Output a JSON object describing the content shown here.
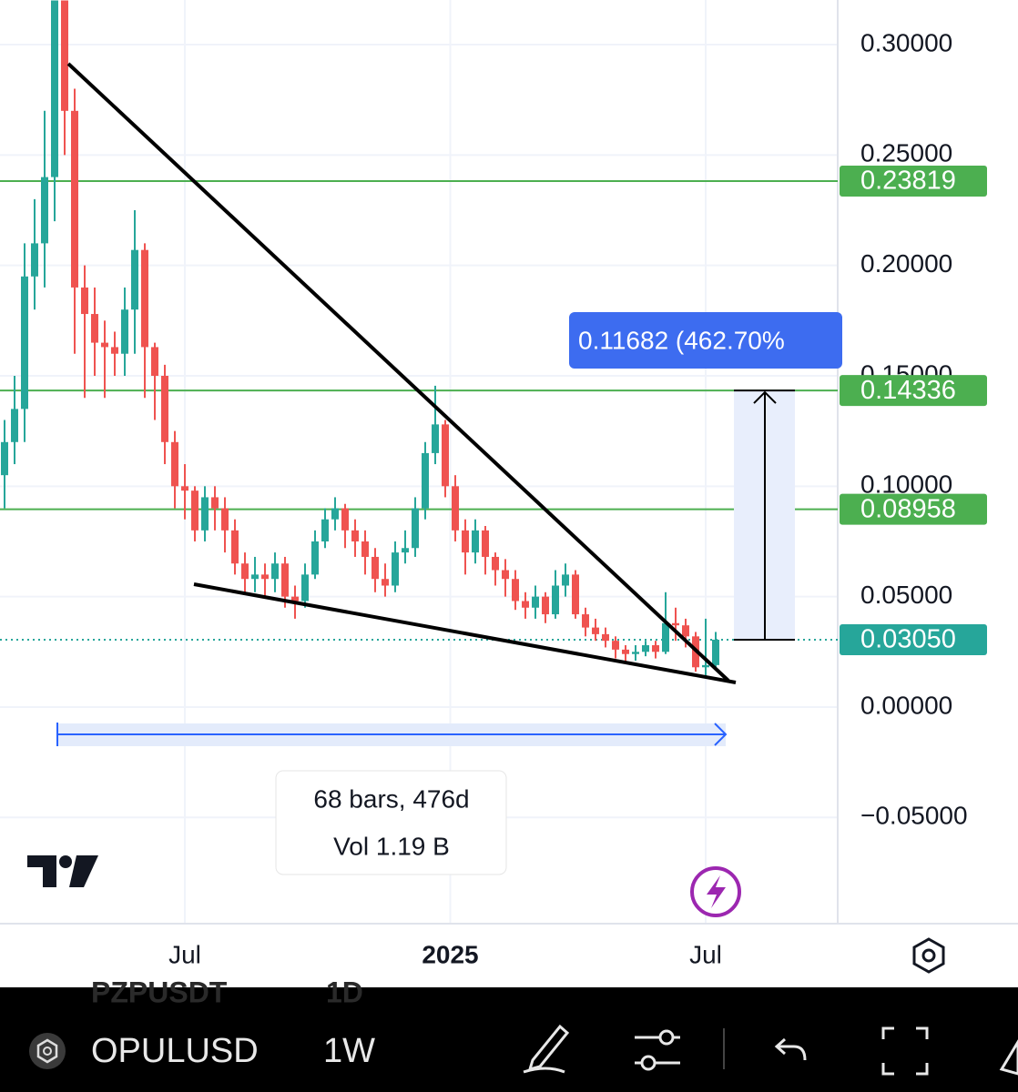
{
  "chart_data": {
    "type": "candlestick",
    "up_color": "#26a69a",
    "down_color": "#ef5350",
    "open": [
      0.105,
      0.12,
      0.135,
      0.195,
      0.21,
      0.24,
      0.32,
      0.27,
      0.19,
      0.178,
      0.165,
      0.163,
      0.16,
      0.18,
      0.207,
      0.163,
      0.15,
      0.12,
      0.1,
      0.098,
      0.08,
      0.095,
      0.09,
      0.08,
      0.065,
      0.058,
      0.06,
      0.058,
      0.065,
      0.05,
      0.048,
      0.06,
      0.075,
      0.085,
      0.09,
      0.08,
      0.075,
      0.068,
      0.058,
      0.055,
      0.07,
      0.072,
      0.09,
      0.115,
      0.128,
      0.1,
      0.08,
      0.07,
      0.08,
      0.068,
      0.062,
      0.058,
      0.048,
      0.045,
      0.05,
      0.042,
      0.055,
      0.06,
      0.042,
      0.036,
      0.033,
      0.03,
      0.026,
      0.024,
      0.025,
      0.028,
      0.025,
      0.038,
      0.037,
      0.032,
      0.018,
      0.019
    ],
    "high": [
      0.13,
      0.15,
      0.21,
      0.23,
      0.27,
      0.32,
      0.32,
      0.28,
      0.2,
      0.19,
      0.175,
      0.17,
      0.19,
      0.225,
      0.21,
      0.165,
      0.155,
      0.125,
      0.11,
      0.1,
      0.1,
      0.1,
      0.095,
      0.085,
      0.07,
      0.068,
      0.065,
      0.07,
      0.068,
      0.055,
      0.065,
      0.08,
      0.09,
      0.095,
      0.092,
      0.085,
      0.08,
      0.072,
      0.065,
      0.075,
      0.08,
      0.095,
      0.12,
      0.1455,
      0.13,
      0.105,
      0.085,
      0.085,
      0.082,
      0.07,
      0.067,
      0.062,
      0.052,
      0.055,
      0.052,
      0.062,
      0.065,
      0.062,
      0.045,
      0.04,
      0.036,
      0.032,
      0.028,
      0.028,
      0.03,
      0.03,
      0.052,
      0.045,
      0.04,
      0.034,
      0.04,
      0.034
    ],
    "low": [
      0.09,
      0.11,
      0.12,
      0.18,
      0.19,
      0.22,
      0.25,
      0.16,
      0.14,
      0.15,
      0.14,
      0.15,
      0.15,
      0.16,
      0.14,
      0.13,
      0.11,
      0.09,
      0.085,
      0.075,
      0.075,
      0.08,
      0.07,
      0.06,
      0.052,
      0.052,
      0.05,
      0.052,
      0.045,
      0.04,
      0.045,
      0.058,
      0.072,
      0.08,
      0.072,
      0.068,
      0.06,
      0.052,
      0.05,
      0.052,
      0.065,
      0.068,
      0.085,
      0.11,
      0.095,
      0.075,
      0.06,
      0.065,
      0.06,
      0.055,
      0.05,
      0.044,
      0.04,
      0.04,
      0.038,
      0.04,
      0.05,
      0.04,
      0.032,
      0.03,
      0.027,
      0.022,
      0.02,
      0.021,
      0.023,
      0.022,
      0.024,
      0.03,
      0.027,
      0.016,
      0.014,
      0.018
    ],
    "close": [
      0.12,
      0.135,
      0.195,
      0.21,
      0.24,
      0.32,
      0.27,
      0.19,
      0.178,
      0.165,
      0.163,
      0.16,
      0.18,
      0.207,
      0.163,
      0.15,
      0.12,
      0.1,
      0.098,
      0.08,
      0.095,
      0.09,
      0.08,
      0.065,
      0.058,
      0.06,
      0.058,
      0.065,
      0.05,
      0.048,
      0.06,
      0.075,
      0.085,
      0.09,
      0.08,
      0.075,
      0.068,
      0.058,
      0.055,
      0.07,
      0.072,
      0.09,
      0.115,
      0.128,
      0.1,
      0.08,
      0.07,
      0.08,
      0.068,
      0.062,
      0.058,
      0.048,
      0.045,
      0.05,
      0.042,
      0.055,
      0.06,
      0.042,
      0.036,
      0.033,
      0.03,
      0.026,
      0.024,
      0.025,
      0.028,
      0.025,
      0.038,
      0.037,
      0.032,
      0.018,
      0.019,
      0.0305
    ],
    "ylim": [
      -0.0981,
      0.3202
    ],
    "yticks": [
      {
        "value": -0.05,
        "label": "−0.05000"
      },
      {
        "value": 0,
        "label": "0.00000"
      },
      {
        "value": 0.05,
        "label": "0.05000"
      },
      {
        "value": 0.1,
        "label": "0.10000"
      },
      {
        "value": 0.15,
        "label": "0.15000"
      },
      {
        "value": 0.2,
        "label": "0.20000"
      },
      {
        "value": 0.25,
        "label": "0.25000"
      },
      {
        "value": 0.3,
        "label": "0.30000"
      }
    ],
    "xticks": [
      {
        "value": 18,
        "label": "Jul"
      },
      {
        "value": 44.5,
        "label": "2025"
      },
      {
        "value": 70,
        "label": "Jul"
      }
    ],
    "grid": true,
    "level_color": "#4caf50",
    "levels": [
      0.23819,
      0.14336,
      0.08958
    ],
    "last_price": {
      "value": 0.0305,
      "label": "0.03050"
    },
    "measure_label": "0.11682 (462.70%",
    "range_label": [
      "68 bars, 476d",
      "Vol 1.19 B"
    ]
  },
  "toolbar": {
    "symbol": "OPULUSD",
    "interval": "1W",
    "ghost_symbol": "PZPUSDT",
    "ghost_interval": "1D"
  }
}
